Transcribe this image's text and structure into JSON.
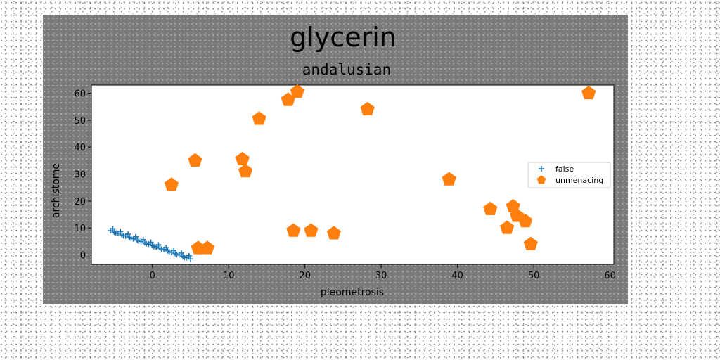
{
  "chart_data": {
    "type": "scatter",
    "title": "glycerin",
    "subtitle": "andalusian",
    "xlabel": "pleometrosis",
    "ylabel": "archistome",
    "xlim": [
      -8,
      60.5
    ],
    "ylim": [
      -3.5,
      63
    ],
    "xticks": [
      0,
      10,
      20,
      30,
      40,
      50,
      60
    ],
    "yticks": [
      0,
      10,
      20,
      30,
      40,
      50,
      60
    ],
    "grid": false,
    "legend_position": "center-right",
    "series": [
      {
        "name": "false",
        "marker": "plus",
        "color": "#1f77b4",
        "x": [
          -5.5,
          -5.0,
          -4.5,
          -4.0,
          -3.5,
          -3.0,
          -2.5,
          -2.0,
          -1.5,
          -1.0,
          -0.5,
          0.0,
          0.5,
          1.0,
          1.5,
          2.0,
          2.5,
          3.0,
          3.5,
          4.0,
          4.5,
          5.0,
          -5.2,
          -4.2,
          -3.2,
          -2.2,
          -1.2,
          -0.2,
          0.8,
          1.8,
          2.8,
          3.8,
          4.8,
          -4.8,
          -3.8,
          -2.8,
          -1.8,
          -0.8,
          0.2,
          1.2,
          2.2,
          3.2,
          4.2
        ],
        "y": [
          9.0,
          8.5,
          8.0,
          7.5,
          7.0,
          6.5,
          6.0,
          5.5,
          5.0,
          4.5,
          4.0,
          3.5,
          3.0,
          2.5,
          2.0,
          1.5,
          1.0,
          0.5,
          0.0,
          -0.5,
          -1.0,
          -1.5,
          9.7,
          8.7,
          7.7,
          6.7,
          5.7,
          4.7,
          3.7,
          2.7,
          1.7,
          0.7,
          -0.3,
          8.1,
          7.1,
          6.1,
          5.1,
          4.1,
          3.1,
          2.1,
          1.1,
          0.1,
          -0.9
        ]
      },
      {
        "name": "unmenacing",
        "marker": "pentagon",
        "color": "#ff7f0e",
        "x": [
          2.5,
          5.6,
          6.0,
          7.2,
          11.8,
          12.2,
          14.0,
          17.8,
          18.5,
          19.0,
          20.8,
          23.8,
          28.2,
          38.9,
          44.3,
          46.5,
          47.3,
          47.8,
          48.9,
          49.6,
          57.2
        ],
        "y": [
          26,
          35,
          2.5,
          2.5,
          35.5,
          31,
          50.5,
          57.5,
          9,
          60.5,
          9,
          8,
          54,
          28,
          17,
          10,
          18,
          14.5,
          12.5,
          4,
          60
        ]
      }
    ]
  }
}
